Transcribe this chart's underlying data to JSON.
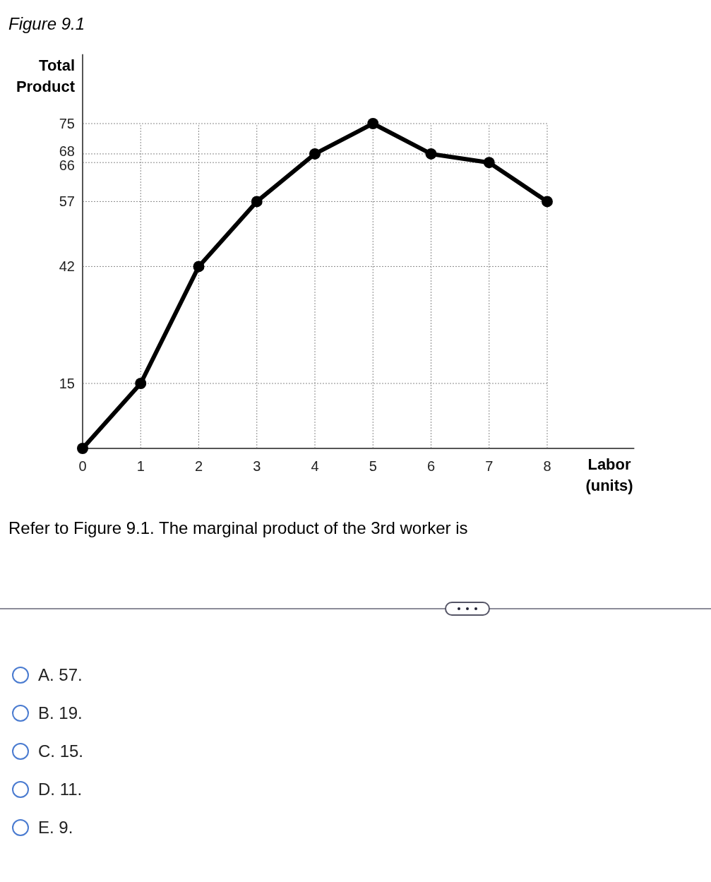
{
  "chart_data": {
    "type": "line",
    "title": "Figure 9.1",
    "xlabel": "Labor (units)",
    "ylabel": "Total Product",
    "x": [
      0,
      1,
      2,
      3,
      4,
      5,
      6,
      7,
      8
    ],
    "series": [
      {
        "color": "#000000",
        "values": [
          0,
          15,
          42,
          57,
          68,
          75,
          68,
          66,
          57
        ]
      }
    ],
    "xlim": [
      0,
      9.5
    ],
    "ylim": [
      0,
      91
    ],
    "xticks": [
      0,
      1,
      2,
      3,
      4,
      5,
      6,
      7,
      8
    ],
    "yticks": [
      15,
      42,
      57,
      66,
      68,
      75
    ],
    "grid": true,
    "marker": "circle",
    "line_style": "solid",
    "annotations": [
      "Refer to Figure 9.1. The marginal product of the 3rd worker is",
      "A. 57.",
      "B. 19.",
      "C. 15.",
      "D. 11.",
      "E. 9."
    ]
  }
}
